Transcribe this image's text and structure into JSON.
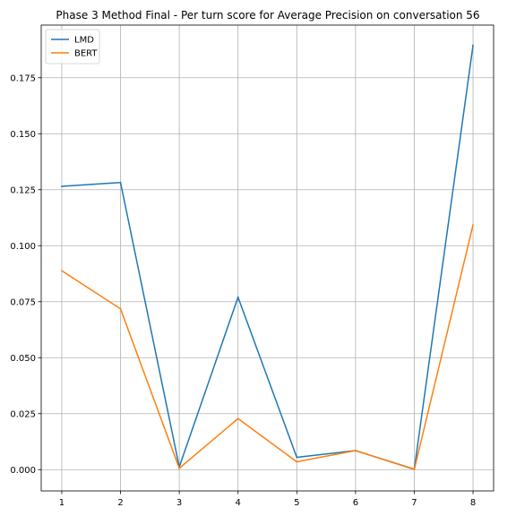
{
  "chart_data": {
    "type": "line",
    "title": "Phase 3 Method Final - Per turn score for Average Precision on conversation 56",
    "xlabel": "",
    "ylabel": "",
    "x": [
      1,
      2,
      3,
      4,
      5,
      6,
      7,
      8
    ],
    "xticks": [
      "1",
      "2",
      "3",
      "4",
      "5",
      "6",
      "7",
      "8"
    ],
    "xlim": [
      0.65,
      8.35
    ],
    "ylim": [
      -0.0095,
      0.1985
    ],
    "yticks": [
      "0.000",
      "0.025",
      "0.050",
      "0.075",
      "0.100",
      "0.125",
      "0.150",
      "0.175"
    ],
    "ytick_values": [
      0.0,
      0.025,
      0.05,
      0.075,
      0.1,
      0.125,
      0.15,
      0.175
    ],
    "grid": true,
    "legend_position": "top-left",
    "series": [
      {
        "name": "LMD",
        "color": "#1f77b4",
        "values": [
          0.1265,
          0.1282,
          0.0012,
          0.077,
          0.0055,
          0.0085,
          0.0002,
          0.1895
        ]
      },
      {
        "name": "BERT",
        "color": "#ff7f0e",
        "values": [
          0.0888,
          0.0718,
          0.0006,
          0.0228,
          0.0035,
          0.0085,
          0.0001,
          0.1093
        ]
      }
    ]
  }
}
